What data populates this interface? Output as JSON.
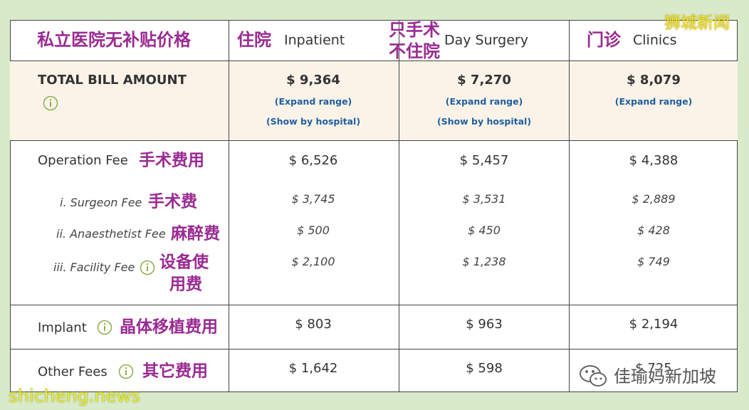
{
  "header": {
    "title": "私立医院无补贴价格",
    "columns": [
      {
        "cn": [
          "住院"
        ],
        "en": "Inpatient"
      },
      {
        "cn": [
          "只手术",
          "不住院"
        ],
        "en": "Day Surgery"
      },
      {
        "cn": [
          "门诊"
        ],
        "en": "Clinics"
      }
    ]
  },
  "total": {
    "label": "TOTAL BILL AMOUNT",
    "columns": [
      {
        "amount": "$ 9,364",
        "links": [
          "(Expand range)",
          "(Show by hospital)"
        ]
      },
      {
        "amount": "$ 7,270",
        "links": [
          "(Expand range)",
          "(Show by hospital)"
        ]
      },
      {
        "amount": "$ 8,079",
        "links": [
          "(Expand range)"
        ]
      }
    ]
  },
  "operation": {
    "label": "Operation Fee",
    "cn": [
      "手术费用"
    ],
    "values": [
      "$ 6,526",
      "$ 5,457",
      "$ 4,388"
    ],
    "subrows": [
      {
        "label": "i. Surgeon Fee",
        "cn": [
          "手术费"
        ],
        "values": [
          "$ 3,745",
          "$ 3,531",
          "$ 2,889"
        ]
      },
      {
        "label": "ii. Anaesthetist Fee",
        "cn": [
          "麻醉费"
        ],
        "values": [
          "$ 500",
          "$ 450",
          "$ 428"
        ]
      },
      {
        "label": "iii. Facility Fee",
        "cn": [
          "设备使",
          "用费"
        ],
        "values": [
          "$ 2,100",
          "$ 1,238",
          "$ 749"
        ]
      }
    ]
  },
  "implant": {
    "label": "Implant",
    "cn": [
      "晶体移植费用"
    ],
    "values": [
      "$ 803",
      "$ 963",
      "$ 2,194"
    ]
  },
  "other": {
    "label": "Other Fees",
    "cn": [
      "其它费用"
    ],
    "values": [
      "$ 1,642",
      "$ 598",
      "$ 725"
    ]
  },
  "watermarks": {
    "top": "狮城新闻",
    "bottom": "shicheng.news",
    "account": "佳瑜妈新加坡"
  }
}
